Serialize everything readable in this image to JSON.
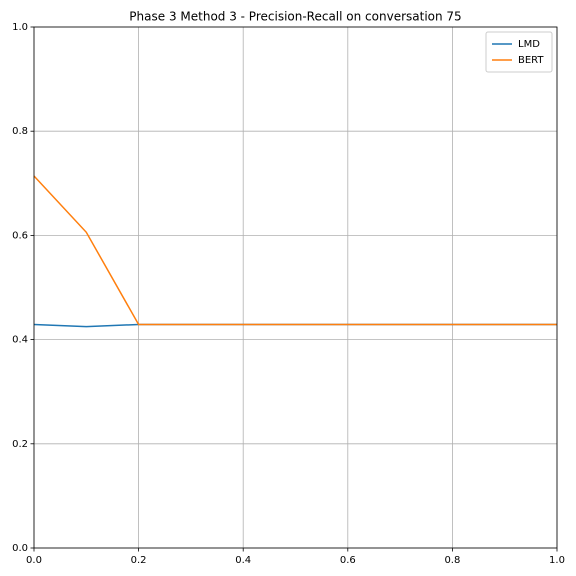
{
  "chart_data": {
    "type": "line",
    "title": "Phase 3 Method 3 - Precision-Recall on conversation 75",
    "x": [
      0,
      0.1,
      0.2,
      0.3,
      0.4,
      0.5,
      0.6,
      0.7,
      0.8,
      0.9,
      1.0
    ],
    "series": [
      {
        "name": "LMD",
        "color": "#1f77b4",
        "values": [
          0.429,
          0.425,
          0.429,
          0.429,
          0.429,
          0.429,
          0.429,
          0.429,
          0.429,
          0.429,
          0.429
        ]
      },
      {
        "name": "BERT",
        "color": "#ff7f0e",
        "values": [
          0.714,
          0.606,
          0.429,
          0.429,
          0.429,
          0.429,
          0.429,
          0.429,
          0.429,
          0.429,
          0.429
        ]
      }
    ],
    "xlim": [
      0,
      1
    ],
    "ylim": [
      0,
      1
    ],
    "xticks": [
      {
        "value": 0,
        "label": "0.0"
      },
      0.2,
      0.4,
      0.6,
      0.8,
      {
        "value": 1,
        "label": "1.0"
      }
    ],
    "yticks": [
      {
        "value": 0,
        "label": "0.0"
      },
      0.2,
      0.4,
      0.6,
      0.8,
      {
        "value": 1,
        "label": "1.0"
      }
    ],
    "grid": true,
    "legend": "upper right"
  }
}
